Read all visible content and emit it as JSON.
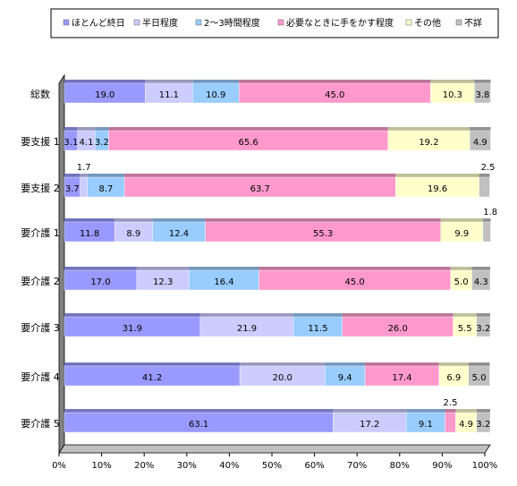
{
  "chart_data": {
    "type": "bar",
    "orientation": "horizontal",
    "stacked": "percent",
    "categories": [
      "総数",
      "要支援 1",
      "要支援 2",
      "要介護 1",
      "要介護 2",
      "要介護 3",
      "要介護 4",
      "要介護 5"
    ],
    "series": [
      {
        "name": "ほとんど終日",
        "color": "#9999ff",
        "values": [
          19.0,
          3.1,
          3.7,
          11.8,
          17.0,
          31.9,
          41.2,
          63.1
        ]
      },
      {
        "name": "半日程度",
        "color": "#ccccff",
        "values": [
          11.1,
          4.1,
          1.7,
          8.9,
          12.3,
          21.9,
          20.0,
          17.2
        ]
      },
      {
        "name": "2～3時間程度",
        "color": "#99ccff",
        "values": [
          10.9,
          3.2,
          8.7,
          12.4,
          16.4,
          11.5,
          9.4,
          9.1
        ]
      },
      {
        "name": "必要なときに手をかす程度",
        "color": "#ff99cc",
        "values": [
          45.0,
          65.6,
          63.7,
          55.3,
          45.0,
          26.0,
          17.4,
          2.5
        ]
      },
      {
        "name": "その他",
        "color": "#ffffcc",
        "values": [
          10.3,
          19.2,
          19.6,
          9.9,
          5.0,
          5.5,
          6.9,
          4.9
        ]
      },
      {
        "name": "不詳",
        "color": "#c0c0c0",
        "values": [
          3.8,
          4.9,
          2.5,
          1.8,
          4.3,
          3.2,
          5.0,
          3.2
        ]
      }
    ],
    "xaxis_ticks": [
      "0%",
      "10%",
      "20%",
      "30%",
      "40%",
      "50%",
      "60%",
      "70%",
      "80%",
      "90%",
      "100%"
    ],
    "xlim": [
      0,
      100
    ],
    "legend_position": "top",
    "grid": false
  }
}
